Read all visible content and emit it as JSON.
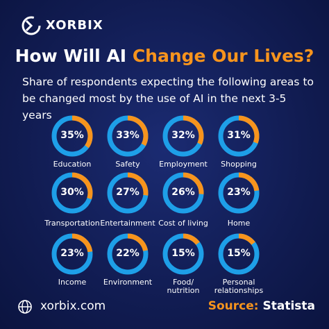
{
  "header": {
    "brand": "XORBIX"
  },
  "chart_data": {
    "type": "donut",
    "title": "How Will AI",
    "title_highlight": "Change Our Lives?",
    "subtitle": "Share of respondents expecting the following areas to be changed most by the use of AI in the next 3-5 years",
    "categories": [
      "Education",
      "Safety",
      "Employment",
      "Shopping",
      "Transportation",
      "Entertainment",
      "Cost of living",
      "Home",
      "Income",
      "Environment",
      "Food/\nnutrition",
      "Personal\nrelationships"
    ],
    "values": [
      35,
      33,
      32,
      31,
      30,
      27,
      26,
      23,
      23,
      22,
      15,
      15
    ],
    "value_labels": [
      "35%",
      "33%",
      "32%",
      "31%",
      "30%",
      "27%",
      "26%",
      "23%",
      "23%",
      "22%",
      "15%",
      "15%"
    ],
    "highlight_color": "#f7941d",
    "ring_color": "#1e9fe8"
  },
  "footer": {
    "website": "xorbix.com",
    "source_label": "Source:",
    "source": "Statista"
  }
}
